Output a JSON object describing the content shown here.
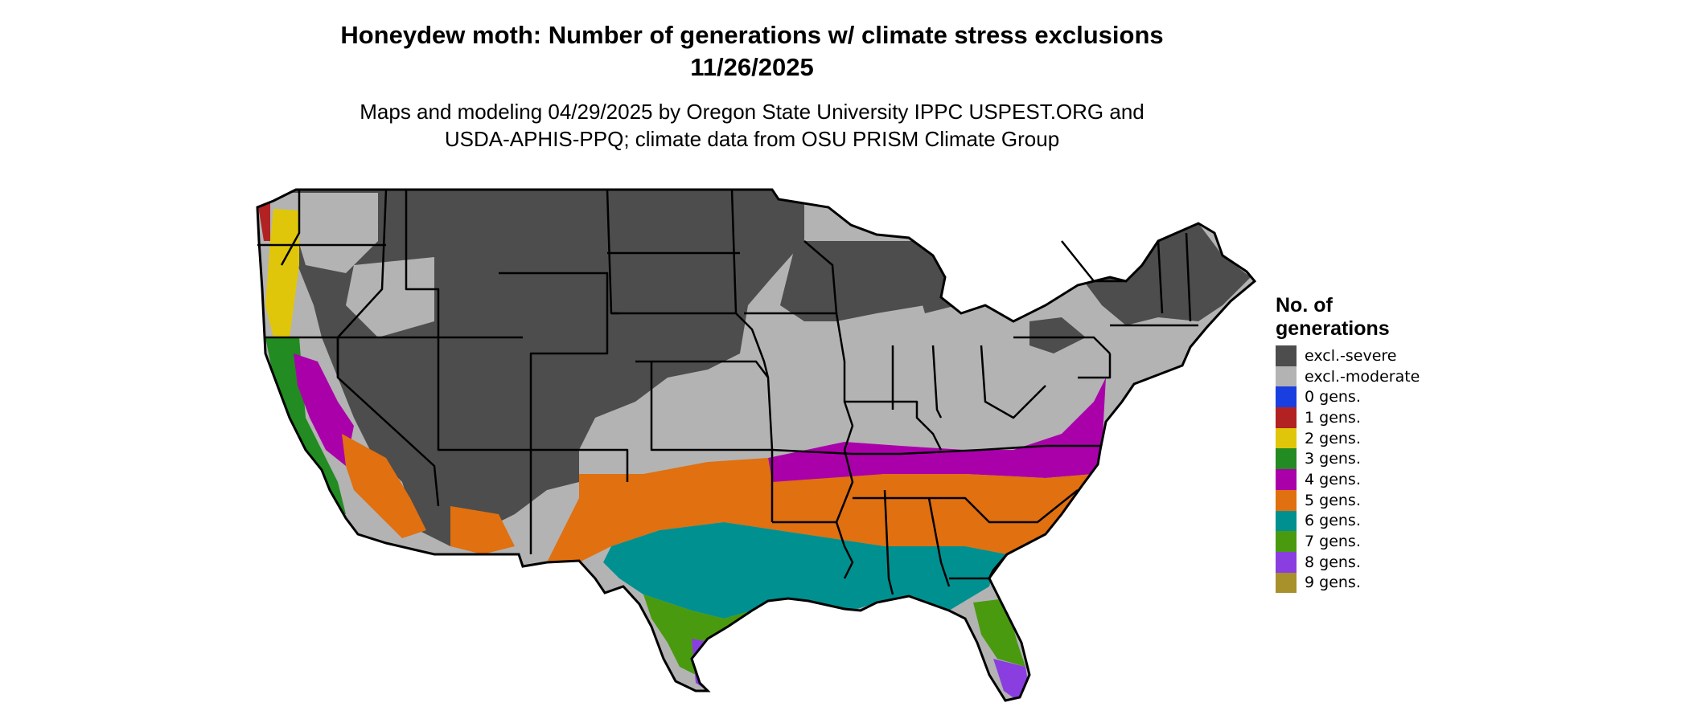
{
  "header": {
    "title_line1": "Honeydew moth: Number of generations w/ climate stress exclusions",
    "title_line2": "11/26/2025",
    "subtitle_line1": "Maps and modeling 04/29/2025 by Oregon State University IPPC USPEST.ORG and",
    "subtitle_line2": "USDA-APHIS-PPQ; climate data from OSU PRISM Climate Group"
  },
  "legend": {
    "title_line1": "No. of",
    "title_line2": "generations",
    "items": [
      {
        "label": "excl.-severe",
        "color": "#4d4d4d"
      },
      {
        "label": "excl.-moderate",
        "color": "#b3b3b3"
      },
      {
        "label": "0 gens.",
        "color": "#1a3fe0"
      },
      {
        "label": "1 gens.",
        "color": "#b22222"
      },
      {
        "label": "2 gens.",
        "color": "#e0c60a"
      },
      {
        "label": "3 gens.",
        "color": "#228b22"
      },
      {
        "label": "4 gens.",
        "color": "#aa00aa"
      },
      {
        "label": "5 gens.",
        "color": "#e07010"
      },
      {
        "label": "6 gens.",
        "color": "#009090"
      },
      {
        "label": "7 gens.",
        "color": "#4a9a10"
      },
      {
        "label": "8 gens.",
        "color": "#8a3ee0"
      },
      {
        "label": "9 gens.",
        "color": "#a8902a"
      }
    ]
  }
}
